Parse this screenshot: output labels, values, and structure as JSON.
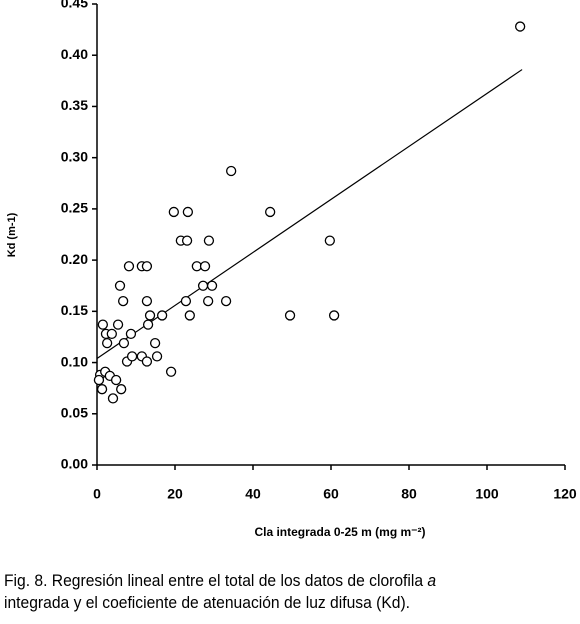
{
  "chart_data": {
    "type": "scatter",
    "xlabel": "Cla integrada 0-25 m  (mg m⁻²)",
    "ylabel": "Kd (m-1)",
    "xlim": [
      0,
      120
    ],
    "xticks": [
      0,
      20,
      40,
      60,
      80,
      100,
      120
    ],
    "ylim": [
      0,
      0.45
    ],
    "yticks": [
      {
        "value": 0,
        "label": "0.00"
      },
      {
        "value": 0.05,
        "label": "0.05"
      },
      {
        "value": 0.1,
        "label": "0.10"
      },
      {
        "value": 0.15,
        "label": "0.15"
      },
      {
        "value": 0.2,
        "label": "0.20"
      },
      {
        "value": 0.25,
        "label": "0.25"
      },
      {
        "value": 0.3,
        "label": "0.30"
      },
      {
        "value": 0.35,
        "label": "0.35"
      },
      {
        "value": 0.4,
        "label": "0.40"
      },
      {
        "value": 0.45,
        "label": "0.45"
      }
    ],
    "color": "#000000",
    "x": [
      108.5,
      34.4,
      19.7,
      23.3,
      44.4,
      21.5,
      23.1,
      28.7,
      59.7,
      8.2,
      11.5,
      12.8,
      25.6,
      27.7,
      5.9,
      27.2,
      29.5,
      6.7,
      12.8,
      22.8,
      28.5,
      33.1,
      13.6,
      16.7,
      23.8,
      49.5,
      60.8,
      1.5,
      5.4,
      13.1,
      2.3,
      3.8,
      8.7,
      2.6,
      6.9,
      14.9,
      7.7,
      9.0,
      11.5,
      12.8,
      15.4,
      19.0,
      0.8,
      2.1,
      0.5,
      3.3,
      4.9,
      1.3,
      6.2,
      4.1
    ],
    "values": [
      0.428,
      0.287,
      0.247,
      0.247,
      0.247,
      0.219,
      0.219,
      0.219,
      0.219,
      0.194,
      0.194,
      0.194,
      0.194,
      0.194,
      0.175,
      0.175,
      0.175,
      0.16,
      0.16,
      0.16,
      0.16,
      0.16,
      0.146,
      0.146,
      0.146,
      0.146,
      0.146,
      0.137,
      0.137,
      0.137,
      0.128,
      0.128,
      0.128,
      0.119,
      0.119,
      0.119,
      0.101,
      0.106,
      0.106,
      0.101,
      0.106,
      0.091,
      0.088,
      0.091,
      0.083,
      0.087,
      0.083,
      0.074,
      0.074,
      0.065
    ],
    "regression": {
      "x": [
        0,
        109
      ],
      "values": [
        0.104,
        0.386
      ]
    }
  },
  "caption": {
    "start": "Fig. 8. Regresión lineal entre el total de los datos de clorofila",
    "italic": "a",
    "end": "integrada y el coeficiente de atenuación de luz difusa (Kd)."
  }
}
